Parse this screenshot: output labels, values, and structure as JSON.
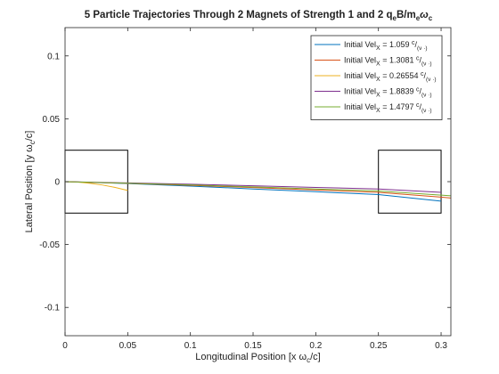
{
  "chart_data": {
    "type": "line",
    "title": {
      "prefix": "5 Particle Trajectories Through 2 Magnets of Strength 1 and 2 q",
      "sub1": "e",
      "mid1": "B/m",
      "sub2": "e",
      "mid2": "ω",
      "sub3": "c"
    },
    "xlabel": {
      "text": "Longitudinal Position [x ω",
      "sub": "c",
      "tail": "/c]"
    },
    "ylabel": {
      "text": "Lateral Position [y ω",
      "sub": "c",
      "tail": "/c]"
    },
    "xlim": [
      0,
      0.3078
    ],
    "ylim": [
      -0.1225,
      0.1225
    ],
    "xticks": [
      0,
      0.05,
      0.1,
      0.15,
      0.2,
      0.25,
      0.3
    ],
    "xtick_labels": [
      "0",
      "0.05",
      "0.1",
      "0.15",
      "0.2",
      "0.25",
      "0.3"
    ],
    "yticks": [
      -0.1,
      -0.05,
      0,
      0.05,
      0.1
    ],
    "ytick_labels": [
      "-0.1",
      "-0.05",
      "0",
      "0.05",
      "0.1"
    ],
    "grid": false,
    "legend_position": "top-right",
    "magnets": [
      {
        "x": [
          0,
          0.05
        ],
        "y": [
          -0.025,
          0.025
        ]
      },
      {
        "x": [
          0.25,
          0.3
        ],
        "y": [
          -0.025,
          0.025
        ]
      }
    ],
    "series": [
      {
        "legend": {
          "prefix": "Initial Vel",
          "sub": "X",
          "value": " = 1.059 ",
          "sup": "c",
          "slash": "/",
          "unit_sub": "(ν ·)"
        },
        "color": "#0072BD",
        "x": [
          0,
          0.05,
          0.1,
          0.15,
          0.2,
          0.25,
          0.3
        ],
        "y": [
          0,
          -0.0015,
          -0.0035,
          -0.0058,
          -0.008,
          -0.0103,
          -0.0155
        ]
      },
      {
        "legend": {
          "prefix": "Initial Vel",
          "sub": "X",
          "value": " = 1.3081 ",
          "sup": "c",
          "slash": "/",
          "unit_sub": "(ν ·)"
        },
        "color": "#D95319",
        "x": [
          0,
          0.05,
          0.1,
          0.15,
          0.2,
          0.25,
          0.3,
          0.3078
        ],
        "y": [
          0,
          -0.0013,
          -0.0029,
          -0.0047,
          -0.0066,
          -0.0085,
          -0.0123,
          -0.013
        ]
      },
      {
        "legend": {
          "prefix": "Initial Vel",
          "sub": "X",
          "value": " = 0.26554 ",
          "sup": "c",
          "slash": "/",
          "unit_sub": "(ν ·)"
        },
        "color": "#EDB120",
        "x": [
          0,
          0.01,
          0.02,
          0.03,
          0.04,
          0.05
        ],
        "y": [
          0,
          -0.0004,
          -0.0013,
          -0.0027,
          -0.0046,
          -0.007
        ]
      },
      {
        "legend": {
          "prefix": "Initial Vel",
          "sub": "X",
          "value": " = 1.8839 ",
          "sup": "c",
          "slash": "/",
          "unit_sub": "(ν ·)"
        },
        "color": "#7E2F8E",
        "x": [
          0,
          0.05,
          0.1,
          0.15,
          0.2,
          0.25,
          0.3
        ],
        "y": [
          0,
          -0.001,
          -0.002,
          -0.0033,
          -0.0046,
          -0.0058,
          -0.0085
        ]
      },
      {
        "legend": {
          "prefix": "Initial Vel",
          "sub": "X",
          "value": " = 1.4797 ",
          "sup": "c",
          "slash": "/",
          "unit_sub": "(ν ·)"
        },
        "color": "#77AC30",
        "x": [
          0,
          0.05,
          0.1,
          0.15,
          0.2,
          0.25,
          0.3,
          0.3078
        ],
        "y": [
          0,
          -0.0012,
          -0.0026,
          -0.0042,
          -0.0058,
          -0.0074,
          -0.0107,
          -0.0112
        ]
      }
    ]
  }
}
